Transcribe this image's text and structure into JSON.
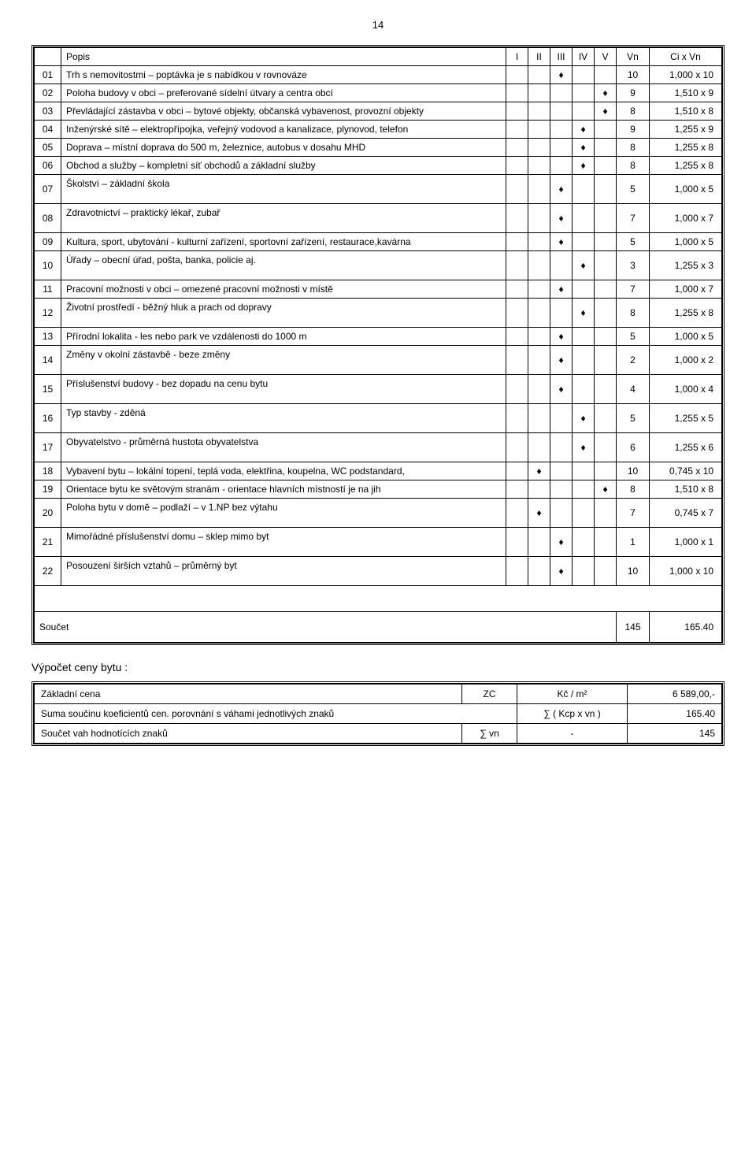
{
  "page_number": "14",
  "header": {
    "cols": [
      "",
      "Popis",
      "I",
      "II",
      "III",
      "IV",
      "V",
      "Vn",
      "Ci x Vn"
    ]
  },
  "rows": [
    {
      "id": "01",
      "desc": "Trh s nemovitostmi – poptávka je s nabídkou v rovnováze",
      "mark": 2,
      "vn": "10",
      "ci": "1,000 x 10"
    },
    {
      "id": "02",
      "desc": "Poloha budovy v obci – preferované sídelní útvary a centra obcí",
      "mark": 4,
      "vn": "9",
      "ci": "1,510 x 9"
    },
    {
      "id": "03",
      "desc": "Převládající zástavba v obci – bytové objekty, občanská vybavenost, provozní objekty",
      "mark": 4,
      "vn": "8",
      "ci": "1,510 x 8"
    },
    {
      "id": "04",
      "desc": "Inženýrské sítě – elektropřípojka, veřejný vodovod a kanalizace, plynovod, telefon",
      "mark": 3,
      "vn": "9",
      "ci": "1,255 x 9"
    },
    {
      "id": "05",
      "desc": "Doprava – místní doprava do 500 m, železnice, autobus v dosahu MHD",
      "mark": 3,
      "vn": "8",
      "ci": "1,255 x 8"
    },
    {
      "id": "06",
      "desc": "Obchod a služby – kompletní síť obchodů a základní služby",
      "mark": 3,
      "vn": "8",
      "ci": "1,255 x 8"
    },
    {
      "id": "07",
      "desc": "Školství – základní škola",
      "mark": 2,
      "vn": "5",
      "ci": "1,000 x 5",
      "tall": true
    },
    {
      "id": "08",
      "desc": "Zdravotnictví – praktický lékař, zubař",
      "mark": 2,
      "vn": "7",
      "ci": "1,000 x 7",
      "tall": true
    },
    {
      "id": "09",
      "desc": "Kultura, sport, ubytování  - kulturní zařízení, sportovní zařízení, restaurace,kavárna",
      "mark": 2,
      "vn": "5",
      "ci": "1,000 x 5"
    },
    {
      "id": "10",
      "desc": "Úřady – obecní úřad, pošta, banka, policie aj.",
      "mark": 3,
      "vn": "3",
      "ci": "1,255 x 3",
      "tall": true
    },
    {
      "id": "11",
      "desc": "Pracovní možnosti v obci – omezené pracovní možnosti v místě",
      "mark": 2,
      "vn": "7",
      "ci": "1,000 x 7"
    },
    {
      "id": "12",
      "desc": "Životní prostředí  - běžný hluk a prach od dopravy",
      "mark": 3,
      "vn": "8",
      "ci": "1,255 x 8",
      "tall": true
    },
    {
      "id": "13",
      "desc": "Přírodní lokalita  - les nebo park ve vzdálenosti do 1000 m",
      "mark": 2,
      "vn": "5",
      "ci": "1,000 x 5"
    },
    {
      "id": "14",
      "desc": "Změny v okolní zástavbě  - beze změny",
      "mark": 2,
      "vn": "2",
      "ci": "1,000 x 2",
      "tall": true
    },
    {
      "id": "15",
      "desc": "Příslušenství budovy  - bez dopadu na cenu bytu",
      "mark": 2,
      "vn": "4",
      "ci": "1,000 x 4",
      "tall": true
    },
    {
      "id": "16",
      "desc": "Typ stavby  - zděná",
      "mark": 3,
      "vn": "5",
      "ci": "1,255 x 5",
      "tall": true
    },
    {
      "id": "17",
      "desc": "Obyvatelstvo  - průměrná hustota obyvatelstva",
      "mark": 3,
      "vn": "6",
      "ci": "1,255 x 6",
      "tall": true
    },
    {
      "id": "18",
      "desc": "Vybavení bytu – lokální topení, teplá voda, elektřina, koupelna, WC podstandard,",
      "mark": 1,
      "vn": "10",
      "ci": "0,745 x 10"
    },
    {
      "id": "19",
      "desc": "Orientace bytu ke světovým stranám  - orientace hlavních místností je na jih",
      "mark": 4,
      "vn": "8",
      "ci": "1,510 x 8"
    },
    {
      "id": "20",
      "desc": "Poloha bytu v domě – podlaží – v 1.NP bez výtahu",
      "mark": 1,
      "vn": "7",
      "ci": "0,745 x 7",
      "tall": true
    },
    {
      "id": "21",
      "desc": "Mimořádné příslušenství domu – sklep mimo byt",
      "mark": 2,
      "vn": "1",
      "ci": "1,000 x 1",
      "tall": true
    },
    {
      "id": "22",
      "desc": "Posouzení širších vztahů – průměrný byt",
      "mark": 2,
      "vn": "10",
      "ci": "1,000 x 10",
      "tall": true
    }
  ],
  "sum": {
    "label": "Součet",
    "vn": "145",
    "ci": "165.40"
  },
  "marker": "♦",
  "calc_title": "Výpočet ceny bytu :",
  "calc": [
    {
      "label": "Základní cena",
      "sym": "ZC",
      "unit": "Kč / m²",
      "val": "6 589,00,-"
    },
    {
      "label": "Suma součinu koeficientů cen. porovnání s váhami jednotlivých znaků",
      "sym": "",
      "unit": "∑ ( Kcp x vn )",
      "val": "165.40"
    },
    {
      "label": "Součet vah hodnotících znaků",
      "sym": "∑ vn",
      "unit": "-",
      "val": "145"
    }
  ],
  "col_widths": {
    "id": 28,
    "desc": "auto",
    "mark": 28,
    "vn": 40,
    "ci": 85
  }
}
